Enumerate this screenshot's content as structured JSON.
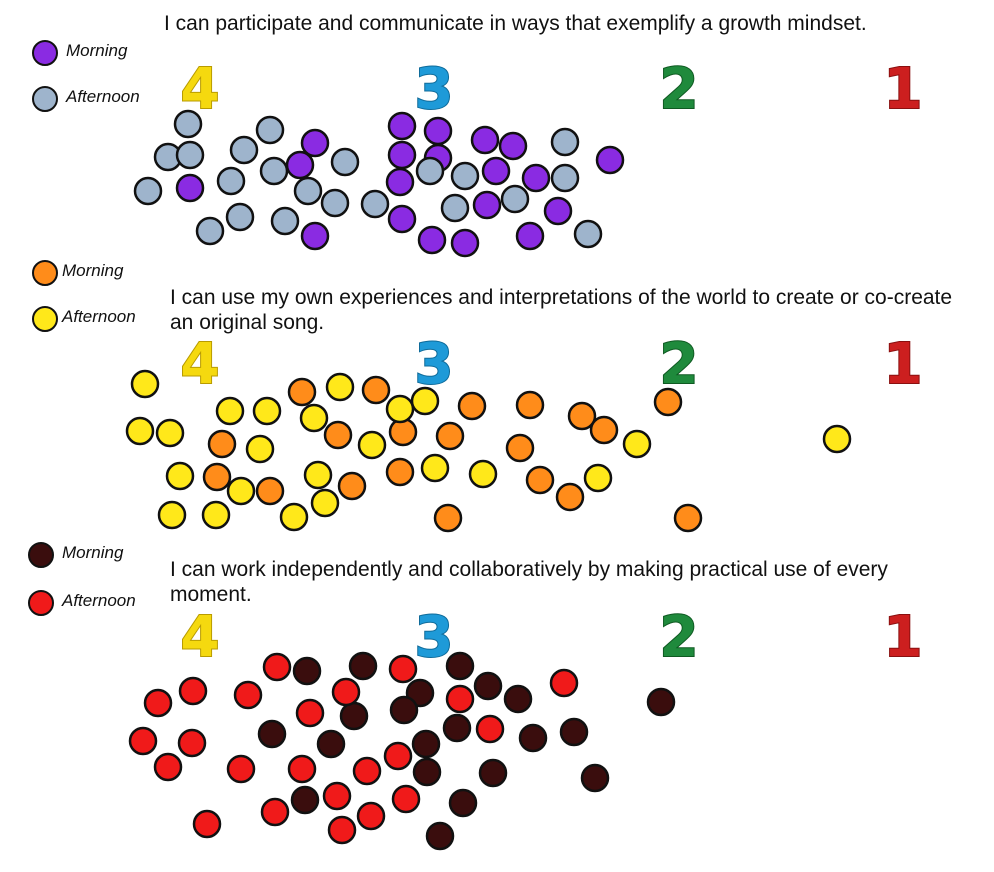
{
  "chart_data": [
    {
      "type": "scatter",
      "title": "I can participate and communicate in ways that exemplify a growth mindset.",
      "scale_labels": [
        {
          "text": "4",
          "color": "#f5d90f"
        },
        {
          "text": "3",
          "color": "#1e9ad8"
        },
        {
          "text": "2",
          "color": "#1f8a3c"
        },
        {
          "text": "1",
          "color": "#cc1f1f"
        }
      ],
      "series": [
        {
          "name": "Morning",
          "color": "#8a2be2",
          "points": [
            [
              315,
              143
            ],
            [
              300,
              165
            ],
            [
              190,
              188
            ],
            [
              315,
              236
            ],
            [
              402,
              126
            ],
            [
              438,
              131
            ],
            [
              402,
              155
            ],
            [
              438,
              158
            ],
            [
              400,
              182
            ],
            [
              485,
              140
            ],
            [
              513,
              146
            ],
            [
              496,
              171
            ],
            [
              536,
              178
            ],
            [
              487,
              205
            ],
            [
              402,
              219
            ],
            [
              432,
              240
            ],
            [
              465,
              243
            ],
            [
              530,
              236
            ],
            [
              558,
              211
            ],
            [
              610,
              160
            ]
          ]
        },
        {
          "name": "Afternoon",
          "color": "#9eb4cc",
          "points": [
            [
              188,
              124
            ],
            [
              168,
              157
            ],
            [
              190,
              155
            ],
            [
              148,
              191
            ],
            [
              210,
              231
            ],
            [
              240,
              217
            ],
            [
              231,
              181
            ],
            [
              244,
              150
            ],
            [
              270,
              130
            ],
            [
              285,
              221
            ],
            [
              274,
              171
            ],
            [
              345,
              162
            ],
            [
              308,
              191
            ],
            [
              335,
              203
            ],
            [
              375,
              204
            ],
            [
              430,
              171
            ],
            [
              465,
              176
            ],
            [
              455,
              208
            ],
            [
              515,
              199
            ],
            [
              565,
              142
            ],
            [
              565,
              178
            ],
            [
              588,
              234
            ]
          ]
        }
      ]
    },
    {
      "type": "scatter",
      "title": "I can use my own experiences and interpretations of the world to create or co-create an original song.",
      "scale_labels": [
        {
          "text": "4",
          "color": "#f5d90f"
        },
        {
          "text": "3",
          "color": "#1e9ad8"
        },
        {
          "text": "2",
          "color": "#1f8a3c"
        },
        {
          "text": "1",
          "color": "#cc1f1f"
        }
      ],
      "series": [
        {
          "name": "Morning",
          "color": "#ff8c1a",
          "points": [
            [
              302,
              392
            ],
            [
              376,
              390
            ],
            [
              338,
              435
            ],
            [
              403,
              432
            ],
            [
              450,
              436
            ],
            [
              472,
              406
            ],
            [
              530,
              405
            ],
            [
              582,
              416
            ],
            [
              604,
              430
            ],
            [
              520,
              448
            ],
            [
              222,
              444
            ],
            [
              217,
              477
            ],
            [
              270,
              491
            ],
            [
              352,
              486
            ],
            [
              400,
              472
            ],
            [
              540,
              480
            ],
            [
              570,
              497
            ],
            [
              448,
              518
            ],
            [
              668,
              402
            ],
            [
              688,
              518
            ]
          ]
        },
        {
          "name": "Afternoon",
          "color": "#ffe81a",
          "points": [
            [
              145,
              384
            ],
            [
              140,
              431
            ],
            [
              170,
              433
            ],
            [
              180,
              476
            ],
            [
              172,
              515
            ],
            [
              216,
              515
            ],
            [
              230,
              411
            ],
            [
              267,
              411
            ],
            [
              260,
              449
            ],
            [
              241,
              491
            ],
            [
              294,
              517
            ],
            [
              314,
              418
            ],
            [
              340,
              387
            ],
            [
              318,
              475
            ],
            [
              325,
              503
            ],
            [
              372,
              445
            ],
            [
              400,
              409
            ],
            [
              425,
              401
            ],
            [
              435,
              468
            ],
            [
              483,
              474
            ],
            [
              598,
              478
            ],
            [
              637,
              444
            ],
            [
              837,
              439
            ]
          ]
        }
      ]
    },
    {
      "type": "scatter",
      "title": "I can work independently and collaboratively by making practical use of every moment.",
      "scale_labels": [
        {
          "text": "4",
          "color": "#f5d90f"
        },
        {
          "text": "3",
          "color": "#1e9ad8"
        },
        {
          "text": "2",
          "color": "#1f8a3c"
        },
        {
          "text": "1",
          "color": "#cc1f1f"
        }
      ],
      "series": [
        {
          "name": "Morning",
          "color": "#3a0d0d",
          "points": [
            [
              307,
              671
            ],
            [
              363,
              666
            ],
            [
              460,
              666
            ],
            [
              488,
              686
            ],
            [
              420,
              693
            ],
            [
              518,
              699
            ],
            [
              354,
              716
            ],
            [
              404,
              710
            ],
            [
              457,
              728
            ],
            [
              272,
              734
            ],
            [
              331,
              744
            ],
            [
              426,
              744
            ],
            [
              533,
              738
            ],
            [
              574,
              732
            ],
            [
              427,
              772
            ],
            [
              493,
              773
            ],
            [
              595,
              778
            ],
            [
              305,
              800
            ],
            [
              463,
              803
            ],
            [
              440,
              836
            ],
            [
              661,
              702
            ]
          ]
        },
        {
          "name": "Afternoon",
          "color": "#f01a1a",
          "points": [
            [
              277,
              667
            ],
            [
              193,
              691
            ],
            [
              158,
              703
            ],
            [
              248,
              695
            ],
            [
              346,
              692
            ],
            [
              403,
              669
            ],
            [
              460,
              699
            ],
            [
              564,
              683
            ],
            [
              310,
              713
            ],
            [
              143,
              741
            ],
            [
              192,
              743
            ],
            [
              490,
              729
            ],
            [
              398,
              756
            ],
            [
              168,
              767
            ],
            [
              241,
              769
            ],
            [
              302,
              769
            ],
            [
              367,
              771
            ],
            [
              275,
              812
            ],
            [
              337,
              796
            ],
            [
              371,
              816
            ],
            [
              406,
              799
            ],
            [
              207,
              824
            ],
            [
              342,
              830
            ]
          ]
        }
      ]
    }
  ]
}
